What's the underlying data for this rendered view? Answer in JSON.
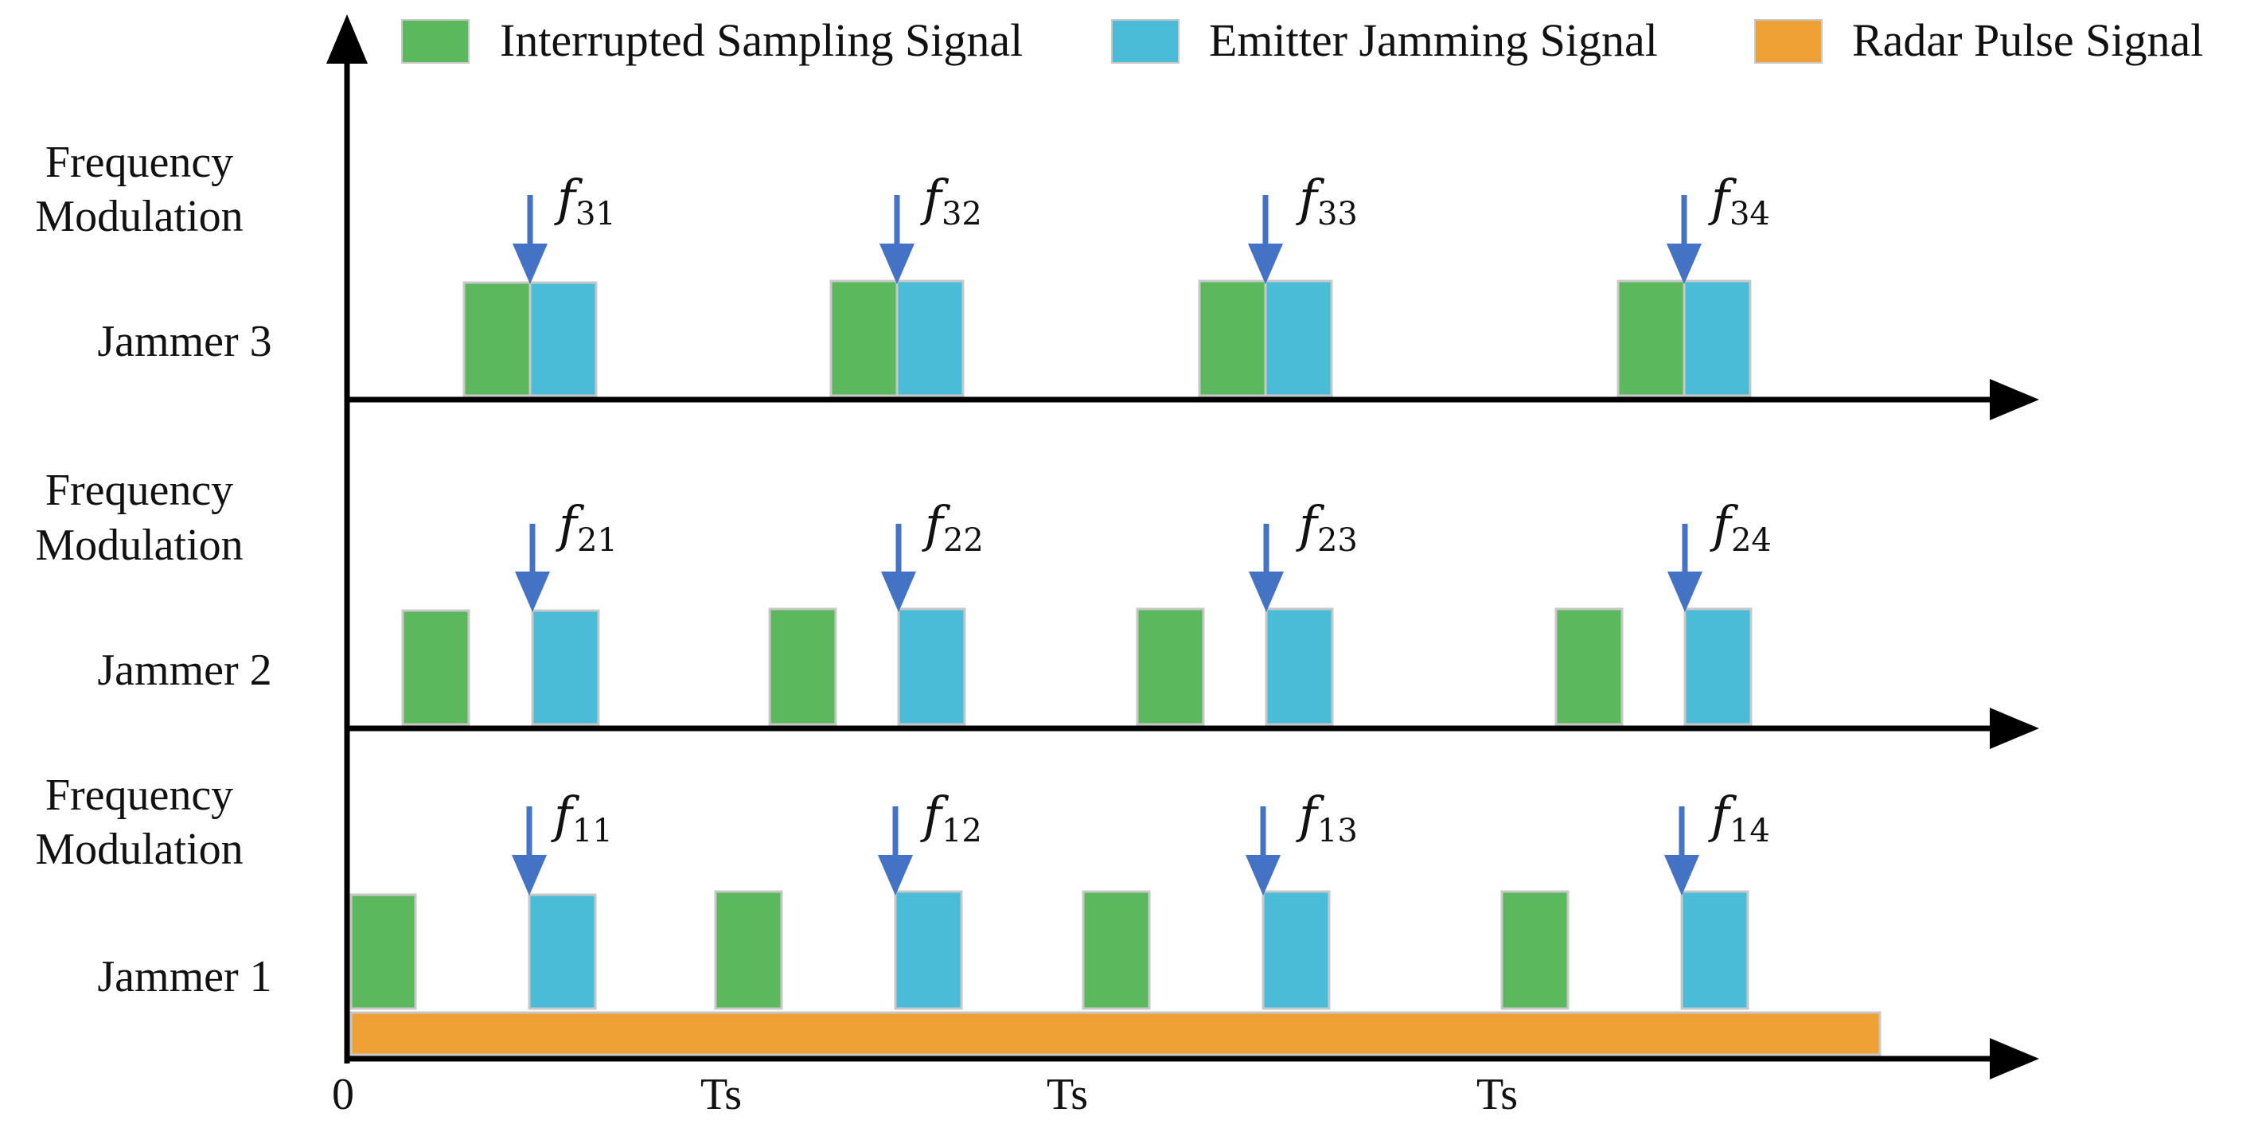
{
  "legend": [
    {
      "label": "Interrupted Sampling Signal",
      "color": "#5cb85c"
    },
    {
      "label": "Emitter Jamming Signal",
      "color": "#4bbcd8"
    },
    {
      "label": "Radar Pulse Signal",
      "color": "#efa136"
    }
  ],
  "colors": {
    "axis": "#000000",
    "arrow": "#4472c4",
    "block_border": "#c8c8c8"
  },
  "axes": {
    "origin_label": "0",
    "ticks": [
      "Ts",
      "Ts",
      "Ts"
    ]
  },
  "rows": [
    {
      "name": "Jammer 3",
      "modulation_label_line1": "Frequency",
      "modulation_label_line2": "Modulation",
      "freq_symbol": "f",
      "freqs": [
        "31",
        "32",
        "33",
        "34"
      ]
    },
    {
      "name": "Jammer 2",
      "modulation_label_line1": "Frequency",
      "modulation_label_line2": "Modulation",
      "freq_symbol": "f",
      "freqs": [
        "21",
        "22",
        "23",
        "24"
      ]
    },
    {
      "name": "Jammer 1",
      "modulation_label_line1": "Frequency",
      "modulation_label_line2": "Modulation",
      "freq_symbol": "f",
      "freqs": [
        "11",
        "12",
        "13",
        "14"
      ]
    }
  ]
}
